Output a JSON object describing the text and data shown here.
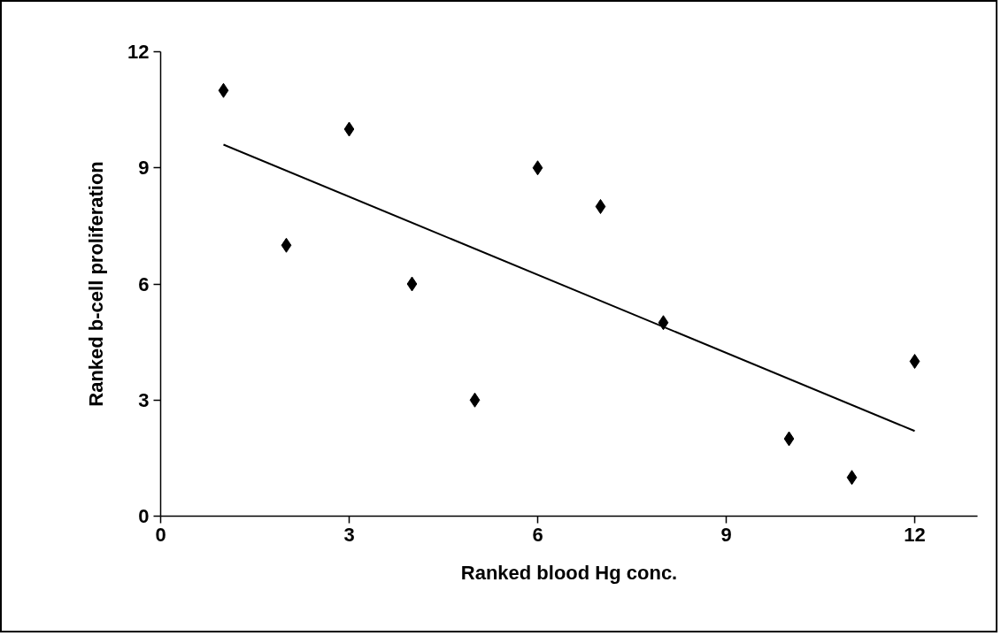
{
  "chart_data": {
    "type": "scatter",
    "xlabel": "Ranked blood Hg conc.",
    "ylabel": "Ranked b-cell proliferation",
    "xlim": [
      0,
      13
    ],
    "ylim": [
      0,
      12
    ],
    "xticks": [
      0,
      3,
      6,
      9,
      12
    ],
    "yticks": [
      0,
      3,
      6,
      9,
      12
    ],
    "grid": false,
    "series": [
      {
        "marker": "diamond",
        "color": "#000000",
        "x": [
          1,
          2,
          3,
          4,
          5,
          6,
          7,
          8,
          10,
          11,
          12
        ],
        "values": [
          11,
          7,
          10,
          6,
          3,
          9,
          8,
          5,
          2,
          1,
          4
        ]
      },
      {
        "type": "line",
        "marker": "none",
        "line_style": "solid",
        "color": "#000000",
        "x": [
          1,
          12
        ],
        "values": [
          9.6,
          2.2
        ]
      }
    ]
  }
}
